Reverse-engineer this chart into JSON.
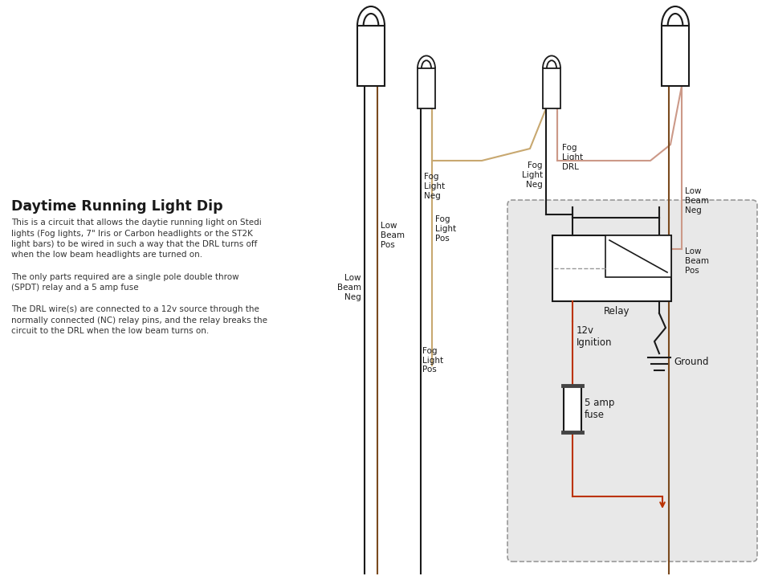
{
  "title": "Daytime Running Light Dip",
  "desc": [
    "This is a circuit that allows the daytie running light on Stedi",
    "lights (Fog lights, 7\" Iris or Carbon headlights or the ST2K",
    "light bars) to be wired in such a way that the DRL turns off",
    "when the low beam headlights are turned on.",
    "",
    "The only parts required are a single pole double throw",
    "(SPDT) relay and a 5 amp fuse",
    "",
    "The DRL wire(s) are connected to a 12v source through the",
    "normally connected (NC) relay pins, and the relay breaks the",
    "circuit to the DRL when the low beam turns on."
  ],
  "bg": "#ffffff",
  "c_black": "#1a1a1a",
  "c_red": "#bb3300",
  "c_brown": "#7a4a1e",
  "c_tan": "#c8a870",
  "c_pink": "#cc9988",
  "c_relay_bg": "#e8e8e8",
  "c_dash": "#999999"
}
